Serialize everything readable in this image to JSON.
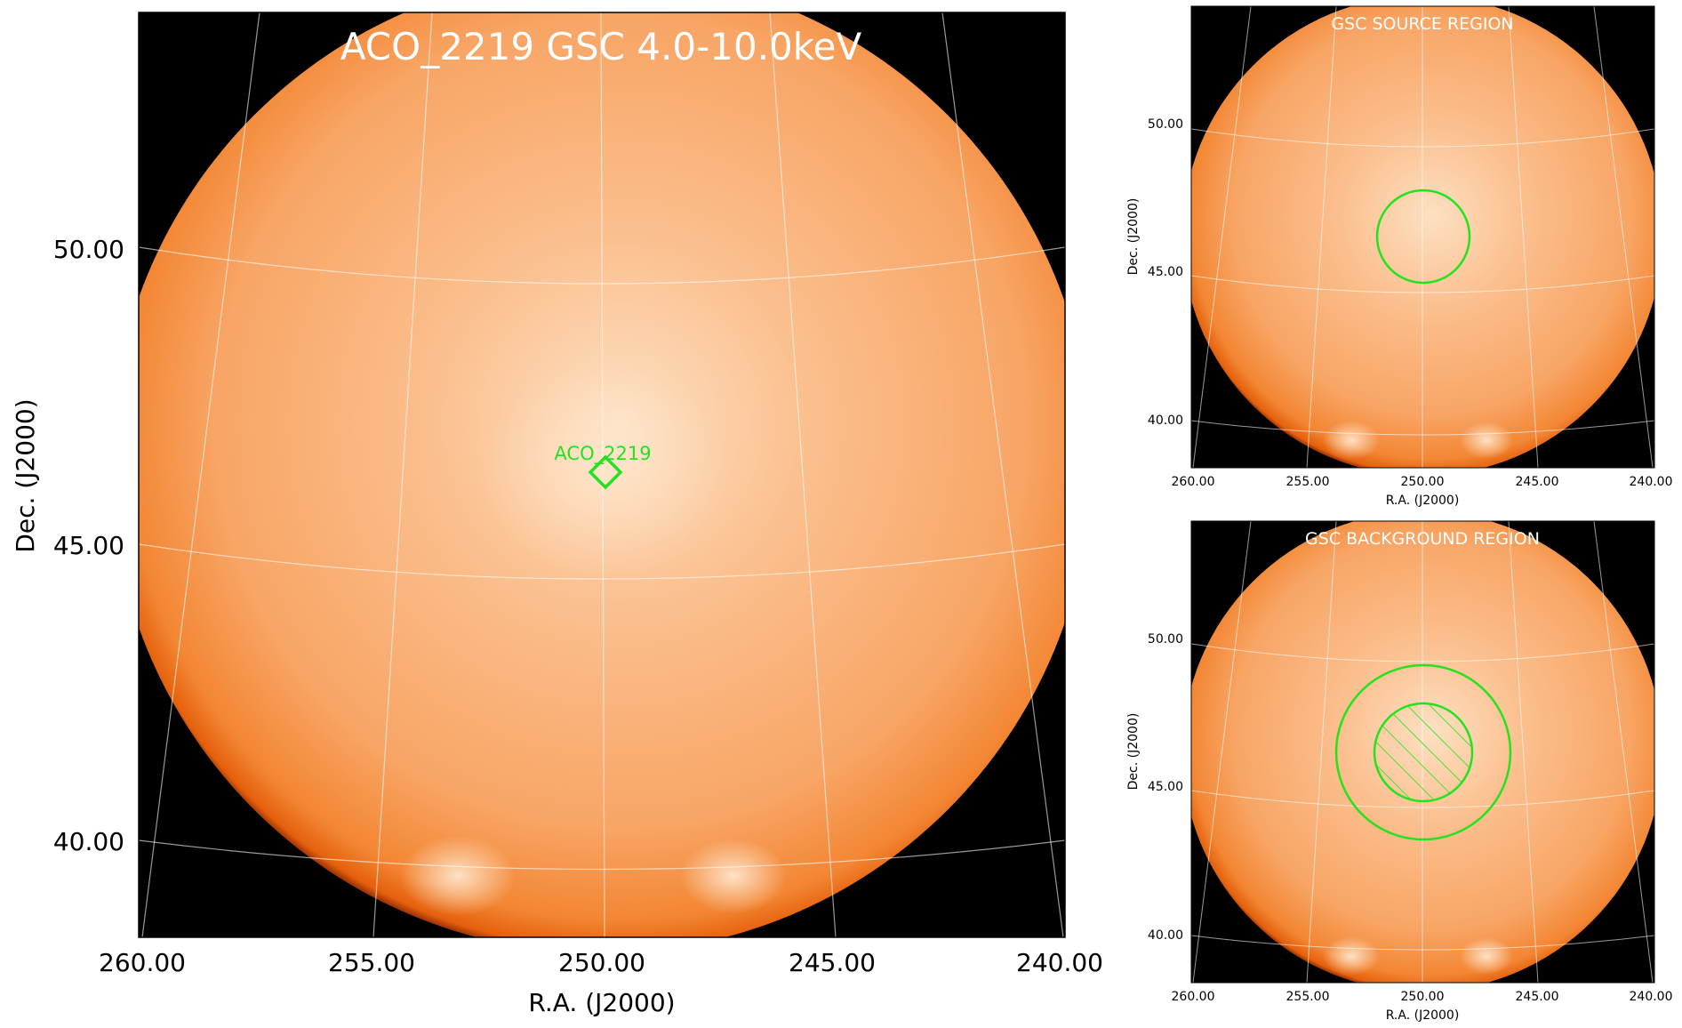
{
  "main_panel": {
    "title": "ACO_2219 GSC 4.0-10.0keV",
    "source_label": "ACO_2219",
    "xlabel": "R.A. (J2000)",
    "ylabel": "Dec. (J2000)",
    "x_ticks": [
      "260.00",
      "255.00",
      "250.00",
      "245.00",
      "240.00"
    ],
    "y_ticks": [
      "50.00",
      "45.00",
      "40.00"
    ]
  },
  "source_panel": {
    "title": "GSC SOURCE REGION",
    "xlabel": "R.A. (J2000)",
    "ylabel": "Dec. (J2000)",
    "x_ticks": [
      "260.00",
      "255.00",
      "250.00",
      "245.00",
      "240.00"
    ],
    "y_ticks": [
      "50.00",
      "45.00",
      "40.00"
    ]
  },
  "background_panel": {
    "title": "GSC BACKGROUND REGION",
    "xlabel": "R.A. (J2000)",
    "ylabel": "Dec. (J2000)",
    "x_ticks": [
      "260.00",
      "255.00",
      "250.00",
      "245.00",
      "240.00"
    ],
    "y_ticks": [
      "50.00",
      "45.00",
      "40.00"
    ]
  },
  "colors": {
    "disk_center": "#fdd8b3",
    "disk_mid": "#f9a05c",
    "disk_edge": "#f06a10",
    "rim": "#8a1a00",
    "region": "#22e31e",
    "grid": "#ffffff"
  }
}
